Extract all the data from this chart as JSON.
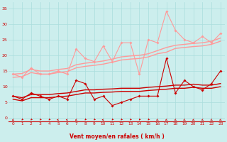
{
  "x": [
    0,
    1,
    2,
    3,
    4,
    5,
    6,
    7,
    8,
    9,
    10,
    11,
    12,
    13,
    14,
    15,
    16,
    17,
    18,
    19,
    20,
    21,
    22,
    23
  ],
  "background_color": "#cceeed",
  "grid_color": "#aadddd",
  "xlabel": "Vent moyen/en rafales ( km/h )",
  "xlabel_color": "#cc0000",
  "yticks": [
    0,
    5,
    10,
    15,
    20,
    25,
    30,
    35
  ],
  "ylim": [
    -1,
    37
  ],
  "xlim": [
    -0.5,
    23.5
  ],
  "lines": [
    {
      "y": [
        7,
        6,
        8,
        7,
        6,
        7,
        6,
        12,
        11,
        6,
        7,
        4,
        5,
        6,
        7,
        7,
        7,
        19,
        8,
        12,
        10,
        9,
        11,
        15
      ],
      "color": "#cc0000",
      "lw": 0.8,
      "marker": "D",
      "ms": 2.0,
      "zorder": 5
    },
    {
      "y": [
        7.0,
        6.5,
        7.5,
        7.5,
        7.5,
        7.8,
        8.0,
        8.5,
        9.0,
        9.0,
        9.2,
        9.3,
        9.5,
        9.5,
        9.5,
        9.8,
        10.0,
        10.2,
        10.5,
        10.5,
        10.8,
        10.5,
        10.5,
        11.0
      ],
      "color": "#cc0000",
      "lw": 1.0,
      "marker": null,
      "ms": 0,
      "zorder": 4
    },
    {
      "y": [
        6.0,
        5.5,
        6.5,
        6.5,
        6.5,
        6.8,
        7.0,
        7.5,
        8.0,
        8.0,
        8.2,
        8.3,
        8.5,
        8.5,
        8.5,
        8.8,
        9.0,
        9.2,
        9.5,
        9.5,
        9.8,
        9.5,
        9.5,
        10.0
      ],
      "color": "#cc0000",
      "lw": 1.0,
      "marker": null,
      "ms": 0,
      "zorder": 4
    },
    {
      "y": [
        14,
        13,
        16,
        14,
        14,
        15,
        14,
        22,
        19,
        18,
        23,
        18,
        24,
        24,
        14,
        25,
        24,
        34,
        28,
        25,
        24,
        26,
        24,
        27
      ],
      "color": "#ff9999",
      "lw": 0.8,
      "marker": "D",
      "ms": 2.0,
      "zorder": 3
    },
    {
      "y": [
        14.0,
        14.2,
        15.5,
        15.0,
        15.0,
        15.5,
        15.8,
        17.0,
        17.5,
        17.8,
        18.2,
        18.8,
        19.5,
        19.8,
        20.0,
        20.5,
        21.5,
        22.5,
        23.2,
        23.5,
        23.8,
        24.0,
        24.5,
        25.5
      ],
      "color": "#ff9999",
      "lw": 1.0,
      "marker": null,
      "ms": 0,
      "zorder": 2
    },
    {
      "y": [
        13.0,
        13.2,
        14.5,
        14.0,
        14.0,
        14.5,
        14.8,
        16.0,
        16.5,
        16.8,
        17.2,
        17.8,
        18.5,
        18.8,
        19.0,
        19.5,
        20.5,
        21.0,
        22.2,
        22.5,
        22.8,
        23.0,
        23.5,
        24.5
      ],
      "color": "#ff9999",
      "lw": 1.0,
      "marker": null,
      "ms": 0,
      "zorder": 2
    }
  ],
  "arrow_angles": [
    225,
    202,
    202,
    202,
    202,
    270,
    270,
    225,
    202,
    202,
    270,
    202,
    202,
    202,
    202,
    202,
    225,
    225,
    225,
    225,
    225,
    225,
    225,
    225
  ]
}
